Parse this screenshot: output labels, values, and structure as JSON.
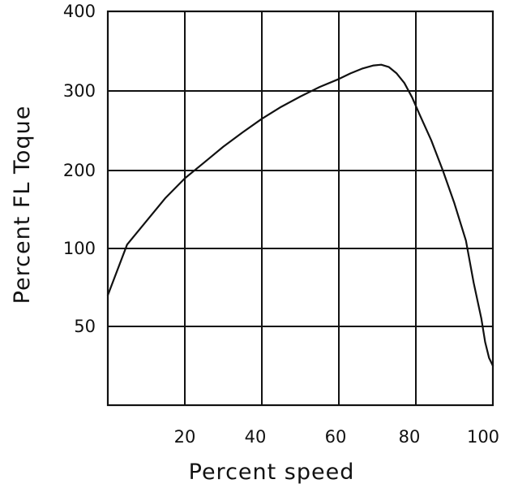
{
  "chart_data": {
    "type": "line",
    "xlabel": "Percent speed",
    "ylabel": "Percent FL Toque",
    "x_ticks": [
      "20",
      "40",
      "60",
      "80",
      "100"
    ],
    "y_ticks": [
      "50",
      "100",
      "200",
      "300",
      "400"
    ],
    "grid": true,
    "series": [
      {
        "x": [
          0,
          5,
          10,
          15,
          20,
          25,
          30,
          35,
          40,
          45,
          50,
          55,
          60,
          63,
          66,
          69,
          71,
          73,
          75,
          77,
          79,
          81,
          84,
          87,
          90,
          93,
          95,
          97,
          98,
          99,
          100
        ],
        "y": [
          70,
          105,
          135,
          165,
          190,
          210,
          230,
          248,
          265,
          280,
          293,
          305,
          315,
          322,
          328,
          332,
          333,
          330,
          322,
          310,
          292,
          270,
          238,
          200,
          158,
          110,
          78,
          55,
          40,
          30,
          25
        ]
      }
    ]
  }
}
